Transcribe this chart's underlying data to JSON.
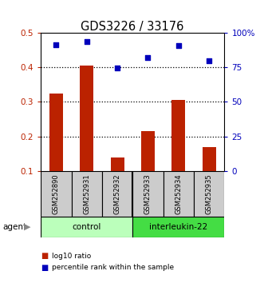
{
  "title": "GDS3226 / 33176",
  "samples": [
    "GSM252890",
    "GSM252931",
    "GSM252932",
    "GSM252933",
    "GSM252934",
    "GSM252935"
  ],
  "log10_ratio": [
    0.325,
    0.405,
    0.14,
    0.215,
    0.305,
    0.17
  ],
  "percentile_rank_pct": [
    91.25,
    93.75,
    74.5,
    82.0,
    90.75,
    79.5
  ],
  "bar_color": "#bb2200",
  "dot_color": "#0000bb",
  "ylim_left": [
    0.1,
    0.5
  ],
  "ylim_right": [
    0,
    100
  ],
  "yticks_left": [
    0.1,
    0.2,
    0.3,
    0.4,
    0.5
  ],
  "ytick_labels_left": [
    "0.1",
    "0.2",
    "0.3",
    "0.4",
    "0.5"
  ],
  "yticks_right": [
    0,
    25,
    50,
    75,
    100
  ],
  "ytick_labels_right": [
    "0",
    "25",
    "50",
    "75",
    "100%"
  ],
  "groups": [
    {
      "label": "control",
      "indices": [
        0,
        1,
        2
      ],
      "color": "#bbffbb"
    },
    {
      "label": "interleukin-22",
      "indices": [
        3,
        4,
        5
      ],
      "color": "#44dd44"
    }
  ],
  "agent_label": "agent",
  "legend_items": [
    {
      "color": "#bb2200",
      "label": "log10 ratio"
    },
    {
      "color": "#0000bb",
      "label": "percentile rank within the sample"
    }
  ],
  "bar_width": 0.45,
  "background_color": "#ffffff",
  "sample_area_color": "#cccccc"
}
